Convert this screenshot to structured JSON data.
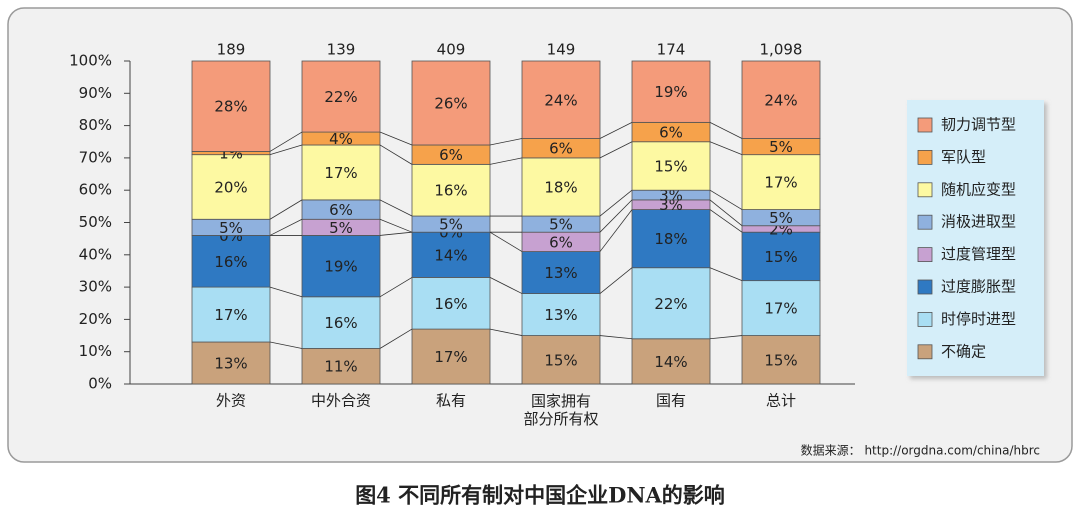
{
  "chart_data": {
    "type": "stacked_bar",
    "title": "图4  不同所有制对中国企业DNA的影响",
    "source": "数据来源： http://orgdna.com/china/hbrc",
    "categories": [
      "外资",
      "中外合资",
      "私有",
      "国家拥有\n部分所有权",
      "国有",
      "总计"
    ],
    "sample_sizes": {
      "values": [
        189,
        139,
        409,
        149,
        174,
        1098
      ],
      "value_labels": [
        "189",
        "139",
        "409",
        "149",
        "174",
        "1,098"
      ]
    },
    "series": [
      {
        "name": "不确定",
        "color": "#c9a27c",
        "values": [
          13,
          11,
          17,
          15,
          14,
          15
        ],
        "value_labels": [
          "13%",
          "11%",
          "17%",
          "15%",
          "14%",
          "15%"
        ]
      },
      {
        "name": "时停时进型",
        "color": "#a9def3",
        "values": [
          17,
          16,
          16,
          13,
          22,
          17
        ],
        "value_labels": [
          "17%",
          "16%",
          "16%",
          "13%",
          "22%",
          "17%"
        ]
      },
      {
        "name": "过度膨胀型",
        "color": "#2f79c2",
        "values": [
          16,
          19,
          14,
          13,
          18,
          15
        ],
        "value_labels": [
          "16%",
          "19%",
          "14%",
          "13%",
          "18%",
          "15%"
        ]
      },
      {
        "name": "过度管理型",
        "color": "#c7a1d1",
        "values": [
          0,
          5,
          0,
          6,
          3,
          2
        ],
        "value_labels": [
          "0%",
          "5%",
          "0%",
          "6%",
          "3%",
          "2%"
        ]
      },
      {
        "name": "消极进取型",
        "color": "#8fb1de",
        "values": [
          5,
          6,
          5,
          5,
          3,
          5
        ],
        "value_labels": [
          "5%",
          "6%",
          "5%",
          "5%",
          "3%",
          "5%"
        ]
      },
      {
        "name": "随机应变型",
        "color": "#fdf9a2",
        "values": [
          20,
          17,
          16,
          18,
          15,
          17
        ],
        "value_labels": [
          "20%",
          "17%",
          "16%",
          "18%",
          "15%",
          "17%"
        ]
      },
      {
        "name": "军队型",
        "color": "#f6a24b",
        "values": [
          1,
          4,
          6,
          6,
          6,
          5
        ],
        "value_labels": [
          "1%",
          "4%",
          "6%",
          "6%",
          "6%",
          "5%"
        ]
      },
      {
        "name": "韧力调节型",
        "color": "#f49b7a",
        "values": [
          28,
          22,
          26,
          24,
          19,
          24
        ],
        "value_labels": [
          "28%",
          "22%",
          "26%",
          "24%",
          "19%",
          "24%"
        ]
      }
    ],
    "ylim": [
      0,
      100
    ],
    "yticks": [
      {
        "value": 0,
        "label": "0%"
      },
      {
        "value": 10,
        "label": "10%"
      },
      {
        "value": 20,
        "label": "20%"
      },
      {
        "value": 30,
        "label": "30%"
      },
      {
        "value": 40,
        "label": "40%"
      },
      {
        "value": 50,
        "label": "50%"
      },
      {
        "value": 60,
        "label": "60%"
      },
      {
        "value": 70,
        "label": "70%"
      },
      {
        "value": 80,
        "label": "80%"
      },
      {
        "value": 90,
        "label": "90%"
      },
      {
        "value": 100,
        "label": "100%"
      }
    ],
    "legend": "right",
    "connectors": true
  }
}
